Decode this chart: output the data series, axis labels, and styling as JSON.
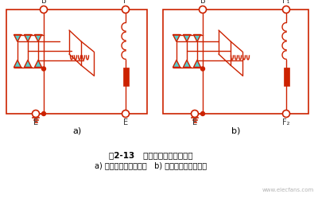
{
  "bg_color": "#ffffff",
  "cc": "#cc2200",
  "diode_fill": "#55cccc",
  "label_color": "#333333",
  "title_line1": "图2-13   交流发电机的搭铁型式",
  "title_line2": "a) 内搭铁型交流发电机   b) 外搭铁型交流发电机",
  "watermark": "www.elecfans.com",
  "fig_width": 4.0,
  "fig_height": 2.49
}
